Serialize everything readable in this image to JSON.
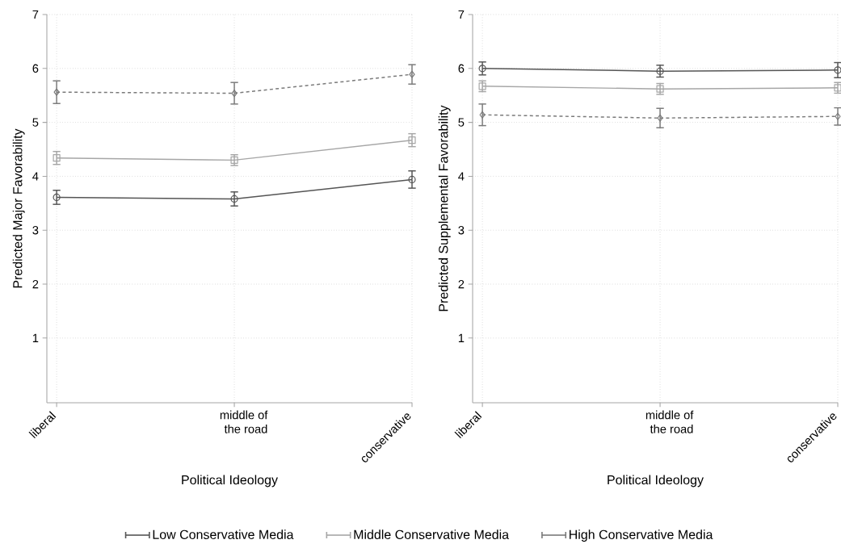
{
  "chart_data": [
    {
      "type": "line",
      "xlabel": "Political Ideology",
      "ylabel": "Predicted Major Favorability",
      "categories": [
        "liberal",
        "middle of the road",
        "conservative"
      ],
      "ylim": [
        -0.2,
        7
      ],
      "yticks": [
        1,
        2,
        3,
        4,
        5,
        6,
        7
      ],
      "grid": true,
      "legend": "bottom",
      "series": [
        {
          "name": "Low Conservative Media",
          "color": "#555555",
          "marker": "circle",
          "line_style": "solid",
          "values": [
            3.61,
            3.58,
            3.94
          ],
          "errors": [
            0.13,
            0.13,
            0.16
          ]
        },
        {
          "name": "Middle Conservative Media",
          "color": "#a6a6a6",
          "marker": "square",
          "line_style": "solid",
          "values": [
            4.34,
            4.3,
            4.67
          ],
          "errors": [
            0.12,
            0.1,
            0.12
          ]
        },
        {
          "name": "High Conservative Media",
          "color": "#7a7a7a",
          "marker": "diamond",
          "line_style": "dashed",
          "values": [
            5.56,
            5.54,
            5.89
          ],
          "errors": [
            0.21,
            0.2,
            0.18
          ]
        }
      ]
    },
    {
      "type": "line",
      "xlabel": "Political Ideology",
      "ylabel": "Predicted Supplemental Favorability",
      "categories": [
        "liberal",
        "middle of the road",
        "conservative"
      ],
      "ylim": [
        -0.2,
        7
      ],
      "yticks": [
        1,
        2,
        3,
        4,
        5,
        6,
        7
      ],
      "grid": true,
      "series": [
        {
          "color": "#555555",
          "marker": "circle",
          "line_style": "solid",
          "values": [
            6.0,
            5.95,
            5.97
          ],
          "errors": [
            0.12,
            0.11,
            0.14
          ]
        },
        {
          "color": "#a6a6a6",
          "marker": "square",
          "line_style": "solid",
          "values": [
            5.67,
            5.62,
            5.64
          ],
          "errors": [
            0.1,
            0.1,
            0.1
          ]
        },
        {
          "color": "#7a7a7a",
          "marker": "diamond",
          "line_style": "dashed",
          "values": [
            5.14,
            5.08,
            5.11
          ],
          "errors": [
            0.2,
            0.18,
            0.16
          ]
        }
      ]
    }
  ]
}
